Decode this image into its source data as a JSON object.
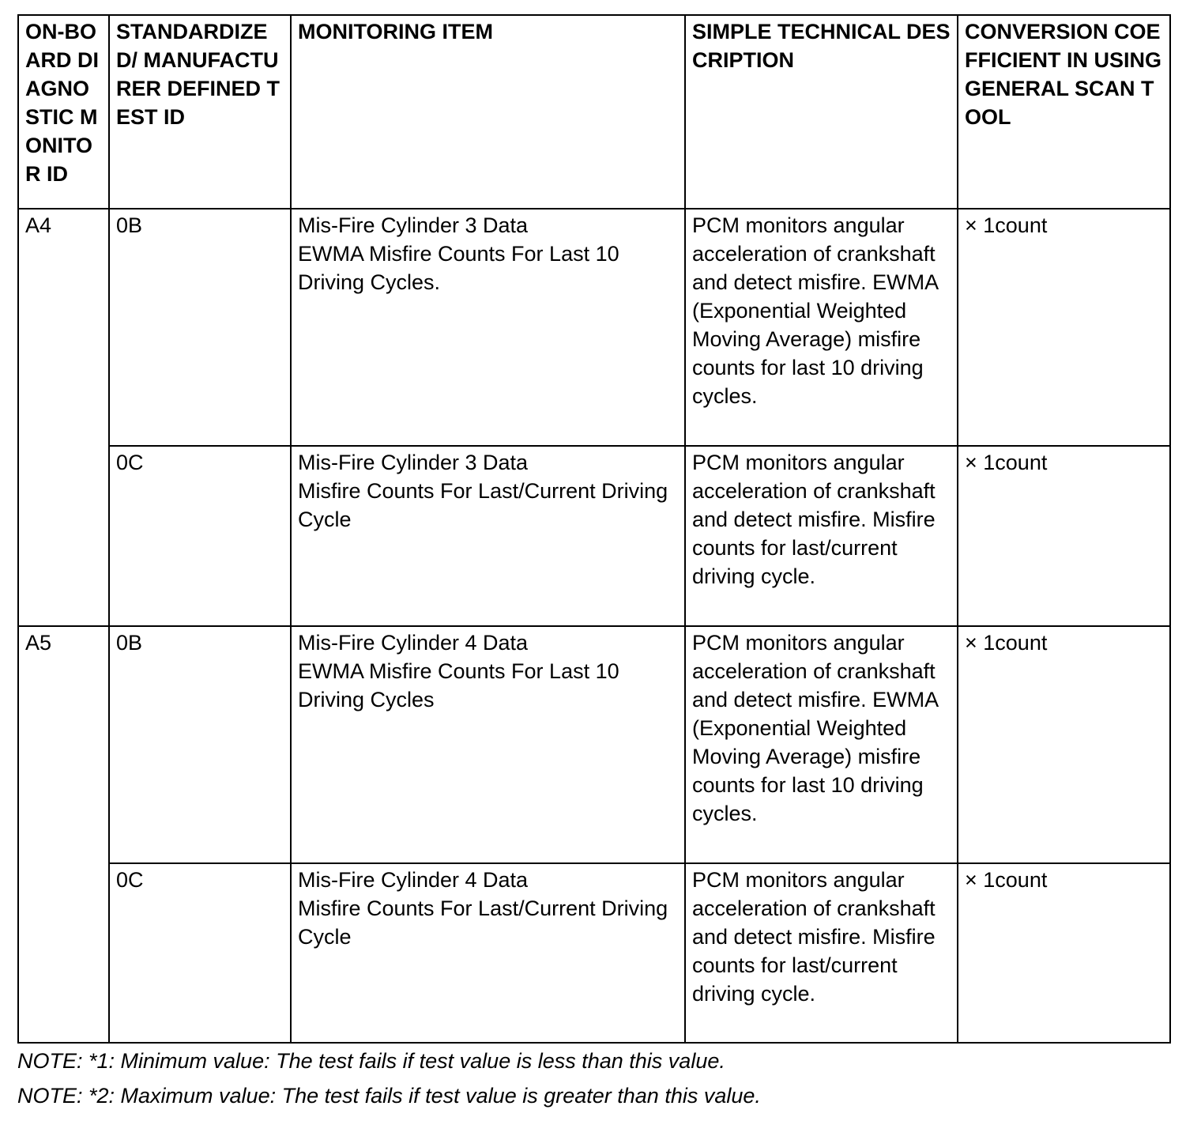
{
  "headers": [
    "ON-BOARD DIAGNOSTIC MONITOR ID",
    "STANDARDIZED/ MANUFACTURER DEFINED TEST ID",
    "MONITORING ITEM",
    "SIMPLE TECHNICAL DESCRIPTION",
    "CONVERSION COEFFICIENT IN USING GENERAL SCAN TOOL"
  ],
  "groups": [
    {
      "monitor_id": "A4",
      "rows": [
        {
          "test_id": "0B",
          "item_l1": "Mis-Fire Cylinder 3 Data",
          "item_l2": "EWMA Misfire Counts For Last 10 Driving Cycles.",
          "description": "PCM monitors angular acceleration of crankshaft and detect misfire. EWMA (Exponential Weighted Moving Average) misfire counts for last 10 driving cycles.",
          "coefficient": "× 1count"
        },
        {
          "test_id": "0C",
          "item_l1": "Mis-Fire Cylinder 3 Data",
          "item_l2": "Misfire Counts For Last/Current Driving Cycle",
          "description": "PCM monitors angular acceleration of crankshaft and detect misfire. Misfire counts for last/current driving cycle.",
          "coefficient": "× 1count"
        }
      ]
    },
    {
      "monitor_id": "A5",
      "rows": [
        {
          "test_id": "0B",
          "item_l1": "Mis-Fire Cylinder 4 Data",
          "item_l2": "EWMA Misfire Counts For Last 10 Driving Cycles",
          "description": "PCM monitors angular acceleration of crankshaft and detect misfire. EWMA (Exponential Weighted Moving Average) misfire counts for last 10 driving cycles.",
          "coefficient": "× 1count"
        },
        {
          "test_id": "0C",
          "item_l1": "Mis-Fire Cylinder 4 Data",
          "item_l2": "Misfire Counts For Last/Current Driving Cycle",
          "description": "PCM monitors angular acceleration of crankshaft and detect misfire. Misfire counts for last/current driving cycle.",
          "coefficient": "× 1count"
        }
      ]
    }
  ],
  "notes": [
    "NOTE: *1: Minimum value: The test fails if test value is less than this value.",
    "NOTE: *2: Maximum value: The test fails if test value is greater than this value."
  ]
}
